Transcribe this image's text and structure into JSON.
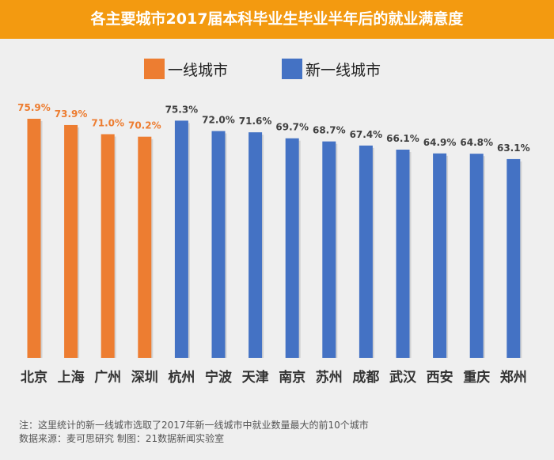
{
  "header": {
    "title": "各主要城市2017届本科毕业生毕业半年后的就业满意度"
  },
  "legend": [
    {
      "label": "一线城市",
      "color": "#ed7d31"
    },
    {
      "label": "新一线城市",
      "color": "#4472c4"
    }
  ],
  "chart_data": {
    "type": "bar",
    "title": "各主要城市2017届本科毕业生毕业半年后的就业满意度",
    "xlabel": "",
    "ylabel": "",
    "ylim": [
      0,
      77.5
    ],
    "grid": false,
    "legend_position": "top-left",
    "categories": [
      "北京",
      "上海",
      "广州",
      "深圳",
      "杭州",
      "宁波",
      "天津",
      "南京",
      "苏州",
      "成都",
      "武汉",
      "西安",
      "重庆",
      "郑州"
    ],
    "values": [
      75.9,
      73.9,
      71.0,
      70.2,
      75.3,
      72.0,
      71.6,
      69.7,
      68.7,
      67.4,
      66.1,
      64.9,
      64.8,
      63.1
    ],
    "groups": [
      "一线城市",
      "一线城市",
      "一线城市",
      "一线城市",
      "新一线城市",
      "新一线城市",
      "新一线城市",
      "新一线城市",
      "新一线城市",
      "新一线城市",
      "新一线城市",
      "新一线城市",
      "新一线城市",
      "新一线城市"
    ],
    "series_colors": {
      "一线城市": "#ed7d31",
      "新一线城市": "#4472c4"
    },
    "label_colors": {
      "一线城市": "#ed7d31",
      "新一线城市": "#404040"
    },
    "value_labels": [
      "75.9%",
      "73.9%",
      "71.0%",
      "70.2%",
      "75.3%",
      "72.0%",
      "71.6%",
      "69.7%",
      "68.7%",
      "67.4%",
      "66.1%",
      "64.9%",
      "64.8%",
      "63.1%"
    ]
  },
  "notes": {
    "note": "注：这里统计的新一线城市选取了2017年新一线城市中就业数量最大的前10个城市",
    "source": "数据来源：麦可思研究   制图：21数据新闻实验室"
  }
}
